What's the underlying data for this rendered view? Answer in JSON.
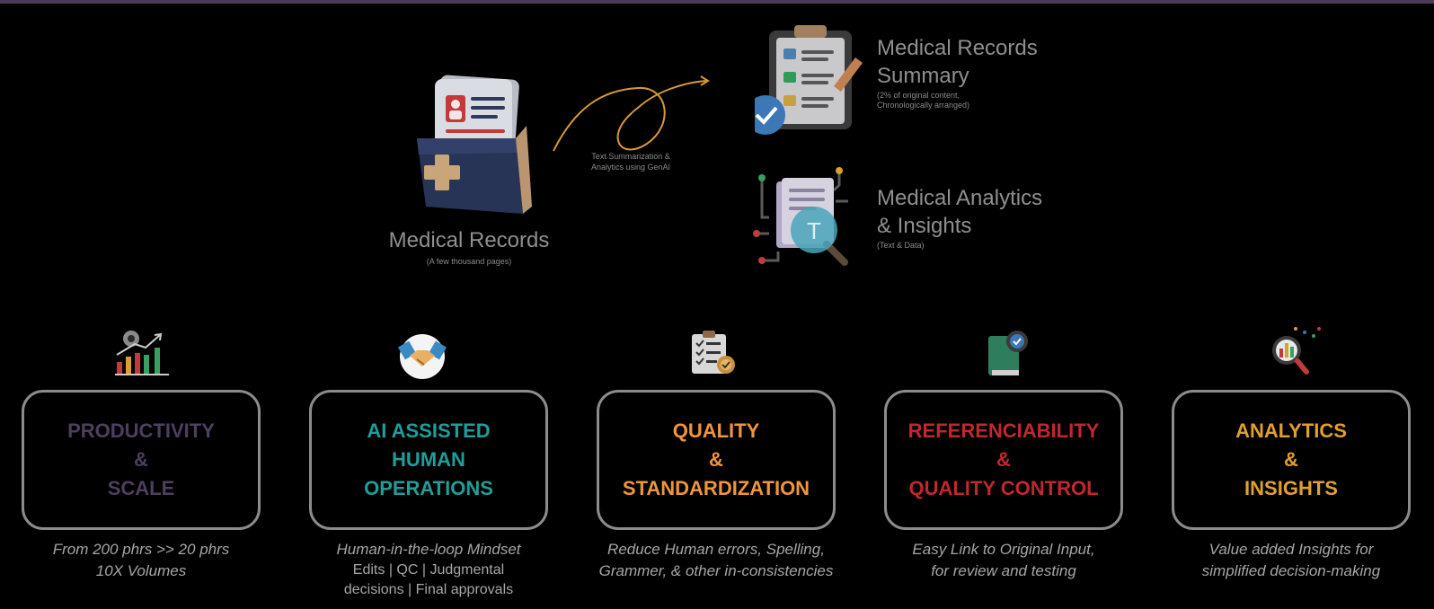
{
  "input": {
    "title": "Medical Records",
    "subtitle": "(A few thousand pages)"
  },
  "process": {
    "label_line1": "Text Summarization &",
    "label_line2": "Analytics using GenAI"
  },
  "outputs": [
    {
      "title_line1": "Medical Records",
      "title_line2": "Summary",
      "sub_line1": "(2% of original content,",
      "sub_line2": "Chronologically arranged)"
    },
    {
      "title_line1": "Medical Analytics",
      "title_line2": "& Insights",
      "sub_line1": "(Text & Data)",
      "icon_letter": "T"
    }
  ],
  "pillars": [
    {
      "icon": "growth-chart-icon",
      "color": "#4d3f5e",
      "lines": [
        "PRODUCTIVITY",
        "&",
        "SCALE"
      ],
      "caption": [
        "From 200 phrs >> 20 phrs",
        "10X Volumes"
      ]
    },
    {
      "icon": "handshake-icon",
      "color": "#1f9e9a",
      "lines": [
        "AI ASSISTED",
        "HUMAN",
        "OPERATIONS"
      ],
      "caption": [
        "Human-in-the-loop Mindset"
      ],
      "caption_plain": [
        "Edits | QC | Judgmental",
        "decisions | Final approvals"
      ]
    },
    {
      "icon": "checklist-badge-icon",
      "color": "#f0963a",
      "lines": [
        "QUALITY",
        "&",
        "STANDARDIZATION"
      ],
      "caption": [
        "Reduce Human errors, Spelling,",
        "Grammer, & other in-consistencies"
      ]
    },
    {
      "icon": "book-check-icon",
      "color": "#c0282e",
      "lines": [
        "REFERENCIABILITY",
        "&",
        "QUALITY CONTROL"
      ],
      "caption": [
        "Easy Link to Original Input,",
        "for review and testing"
      ]
    },
    {
      "icon": "analytics-magnifier-icon",
      "color": "#e0a030",
      "lines": [
        "ANALYTICS",
        "&",
        "INSIGHTS"
      ],
      "caption": [
        "Value added Insights for",
        "simplified decision-making"
      ]
    }
  ]
}
